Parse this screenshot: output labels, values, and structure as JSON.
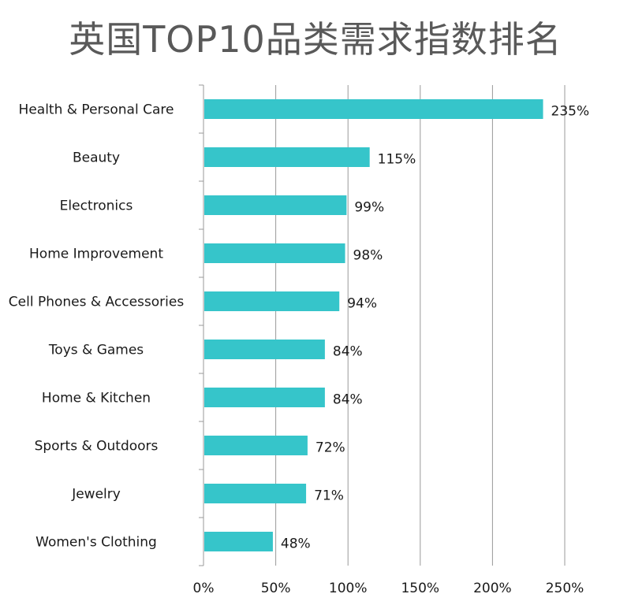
{
  "chart_data": {
    "type": "bar",
    "orientation": "horizontal",
    "title": "英国TOP10品类需求指数排名",
    "categories": [
      "Health & Personal Care",
      "Beauty",
      "Electronics",
      "Home Improvement",
      "Cell Phones & Accessories",
      "Toys & Games",
      "Home & Kitchen",
      "Sports & Outdoors",
      "Jewelry",
      "Women's Clothing"
    ],
    "values": [
      235,
      115,
      99,
      98,
      94,
      84,
      84,
      72,
      71,
      48
    ],
    "value_labels": [
      "235%",
      "115%",
      "99%",
      "98%",
      "94%",
      "84%",
      "84%",
      "72%",
      "71%",
      "48%"
    ],
    "xlim": [
      0,
      250
    ],
    "xticks": [
      0,
      50,
      100,
      150,
      200,
      250
    ],
    "xtick_labels": [
      "0%",
      "50%",
      "100%",
      "150%",
      "200%",
      "250%"
    ],
    "xlabel": "",
    "ylabel": "",
    "grid": "vertical",
    "legend": "none",
    "bar_color": "#36C5CA",
    "grid_color": "#999999"
  }
}
